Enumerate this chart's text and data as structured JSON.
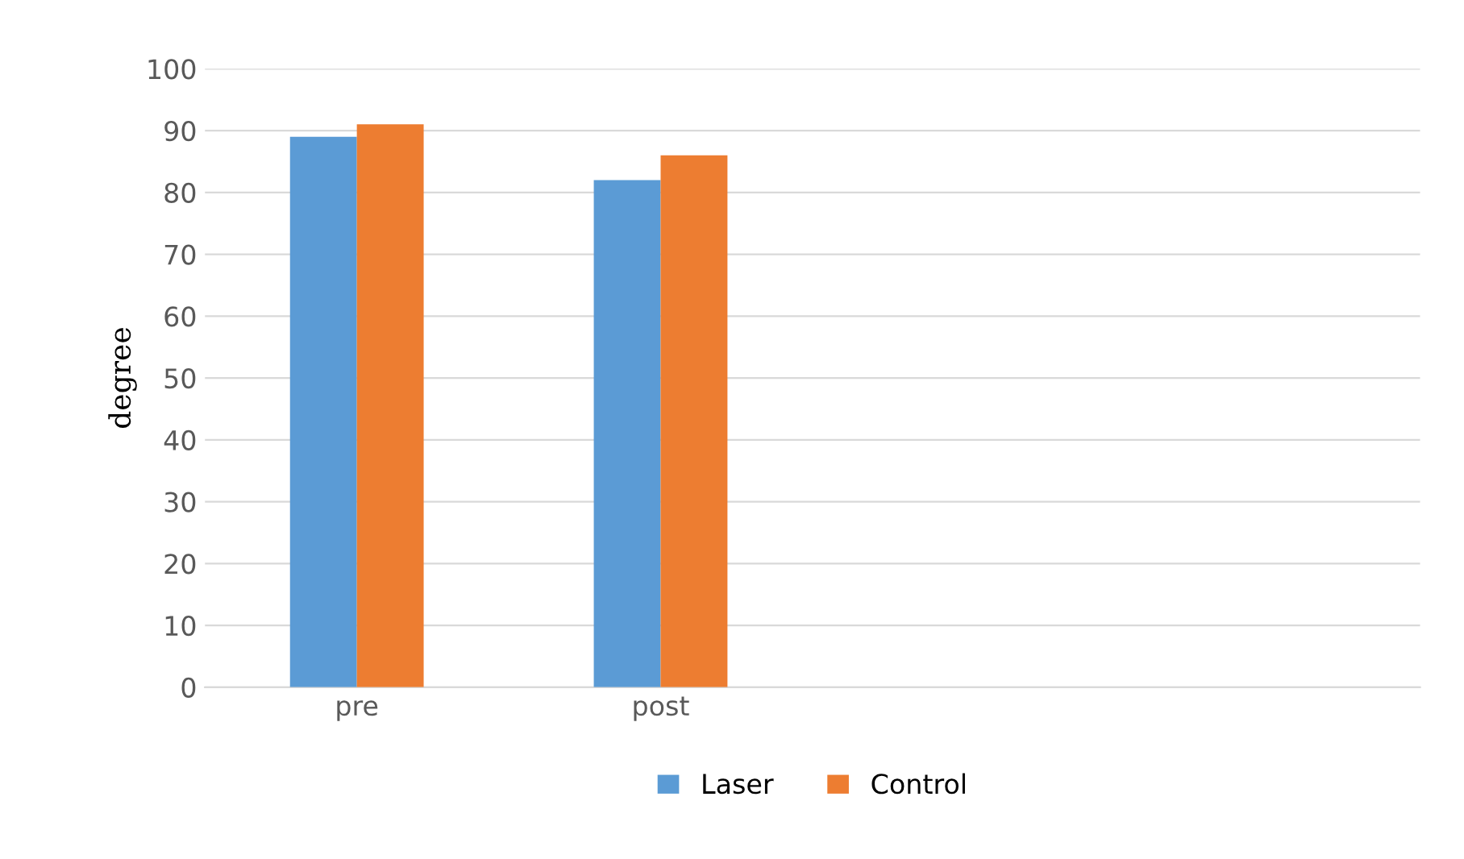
{
  "chart_data": {
    "type": "bar",
    "ylabel": "degree",
    "categories": [
      "pre",
      "post",
      null,
      null
    ],
    "series": [
      {
        "name": "Laser",
        "color": "#5b9bd5",
        "values": [
          89,
          82,
          null,
          null
        ]
      },
      {
        "name": "Control",
        "color": "#ed7d31",
        "values": [
          91,
          86,
          null,
          null
        ]
      }
    ],
    "ylim": [
      0,
      100
    ],
    "yticks": [
      0,
      10,
      20,
      30,
      40,
      50,
      60,
      70,
      80,
      90,
      100
    ],
    "grid": "y",
    "legend": "bottom"
  }
}
